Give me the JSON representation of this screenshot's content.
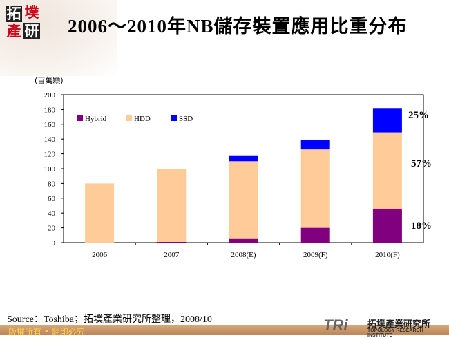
{
  "header": {
    "title": "2006～2010年NB儲存裝置應用比重分布",
    "logo_chars": [
      "拓",
      "墣",
      "產",
      "研"
    ]
  },
  "chart_data": {
    "type": "bar",
    "stacked": true,
    "categories": [
      "2006",
      "2007",
      "2008(E)",
      "2009(F)",
      "2010(F)"
    ],
    "series": [
      {
        "name": "Hybrid",
        "color": "#800080",
        "values": [
          0,
          1,
          5,
          20,
          46
        ]
      },
      {
        "name": "HDD",
        "color": "#FFCC99",
        "values": [
          80,
          99,
          105,
          106,
          103
        ]
      },
      {
        "name": "SSD",
        "color": "#0000FF",
        "values": [
          0,
          0,
          8,
          13,
          33
        ]
      }
    ],
    "ylabel": "(百萬顆)",
    "ylim": [
      0,
      200
    ],
    "yticks": [
      "0",
      "20",
      "40",
      "60",
      "80",
      "100",
      "120",
      "140",
      "160",
      "180",
      "200"
    ],
    "grid": false,
    "legend": "top-left",
    "annotations": [
      "25%",
      "57%",
      "18%"
    ]
  },
  "footer": {
    "source": "Source：Toshiba；拓墣產業研究所整理，2008/10",
    "copyright": "版權所有 • 翻印必究",
    "org_cn": "拓墣產業研究所",
    "org_en": "TOPOLOGY RESEARCH INSTITUTE",
    "org_abbr": "TRi"
  }
}
